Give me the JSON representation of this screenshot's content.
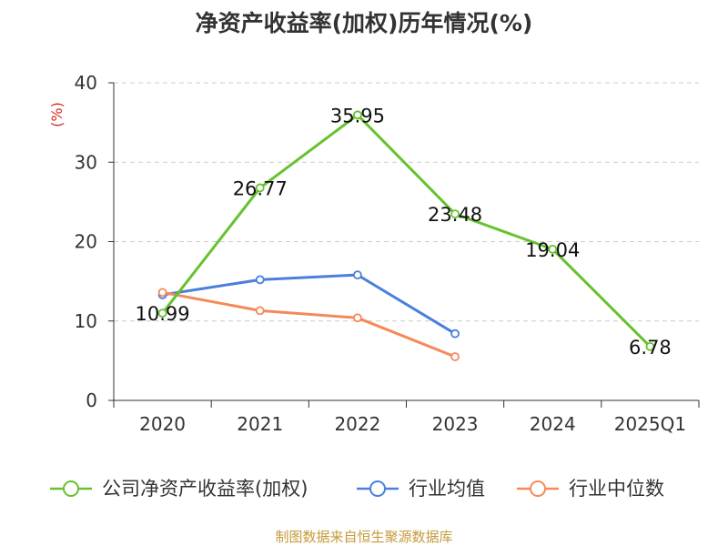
{
  "chart_data": {
    "type": "line",
    "title": "净资产收益率(加权)历年情况(%)",
    "ylabel": "(%)",
    "xlabel": "",
    "categories": [
      "2020",
      "2021",
      "2022",
      "2023",
      "2024",
      "2025Q1"
    ],
    "ylim": [
      0,
      40
    ],
    "yticks": [
      "0",
      "10",
      "20",
      "30",
      "40"
    ],
    "grid": true,
    "legend_position": "bottom",
    "series": [
      {
        "name": "公司净资产收益率(加权)",
        "color": "#66c22e",
        "values": [
          10.99,
          26.77,
          35.95,
          23.48,
          19.04,
          6.78
        ],
        "labels": [
          "10.99",
          "26.77",
          "35.95",
          "23.48",
          "19.04",
          "6.78"
        ]
      },
      {
        "name": "行业均值",
        "color": "#4a7fdb",
        "values": [
          13.3,
          15.2,
          15.8,
          8.4,
          null,
          null
        ]
      },
      {
        "name": "行业中位数",
        "color": "#f5895a",
        "values": [
          13.6,
          11.3,
          10.4,
          5.5,
          null,
          null
        ]
      }
    ],
    "source": "制图数据来自恒生聚源数据库",
    "colors": {
      "unit": "#d9281f",
      "source": "#c49a3a",
      "axis": "#333333",
      "grid": "#cccccc"
    }
  }
}
